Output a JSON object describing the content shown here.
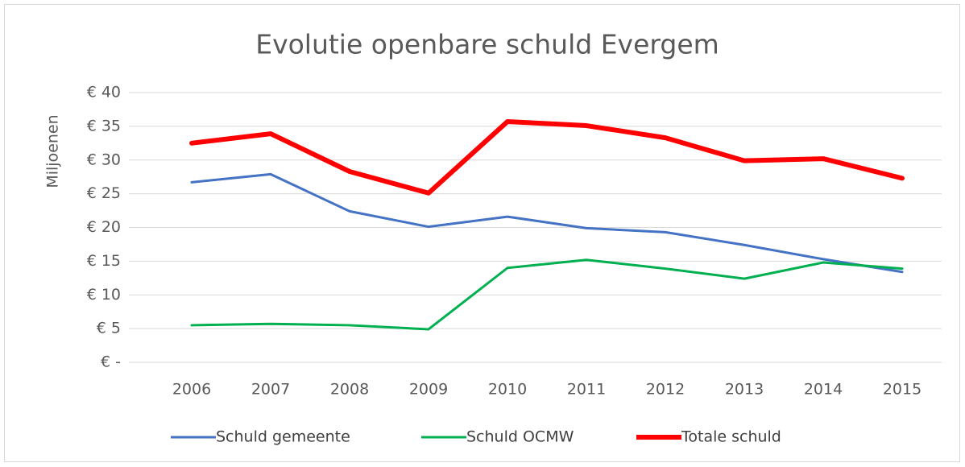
{
  "chart_data": {
    "type": "line",
    "title": "Evolutie openbare schuld Evergem",
    "y_label": "Miljoenen",
    "categories": [
      "2006",
      "2007",
      "2008",
      "2009",
      "2010",
      "2011",
      "2012",
      "2013",
      "2014",
      "2015"
    ],
    "series": [
      {
        "name": "Schuld gemeente",
        "color": "#4472c4",
        "width": 3,
        "values": [
          26.7,
          27.9,
          22.4,
          20.1,
          21.6,
          19.9,
          19.3,
          17.4,
          15.3,
          13.4
        ]
      },
      {
        "name": "Schuld OCMW",
        "color": "#00b050",
        "width": 3,
        "values": [
          5.5,
          5.7,
          5.5,
          4.9,
          14.0,
          15.2,
          13.9,
          12.4,
          14.8,
          13.9
        ]
      },
      {
        "name": "Totale schuld",
        "color": "#ff0000",
        "width": 6,
        "values": [
          32.5,
          33.9,
          28.3,
          25.1,
          35.7,
          35.1,
          33.3,
          29.9,
          30.2,
          27.3
        ]
      }
    ],
    "ylim": [
      0,
      40
    ],
    "yticks": [
      {
        "value": 0,
        "label": "€ -"
      },
      {
        "value": 5,
        "label": "€ 5"
      },
      {
        "value": 10,
        "label": "€ 10"
      },
      {
        "value": 15,
        "label": "€ 15"
      },
      {
        "value": 20,
        "label": "€ 20"
      },
      {
        "value": 25,
        "label": "€ 25"
      },
      {
        "value": 30,
        "label": "€ 30"
      },
      {
        "value": 35,
        "label": "€ 35"
      },
      {
        "value": 40,
        "label": "€ 40"
      }
    ],
    "grid": true,
    "legend": "bottom"
  }
}
